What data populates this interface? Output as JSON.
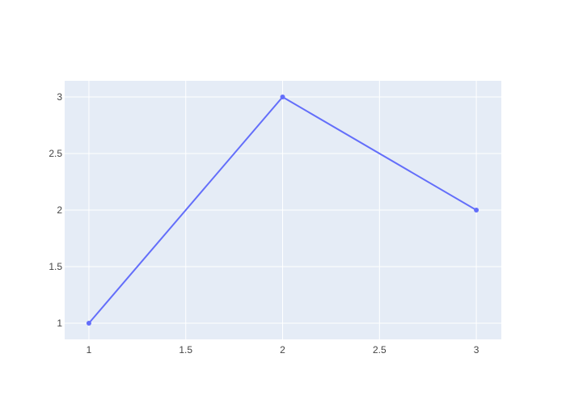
{
  "chart_data": {
    "type": "line",
    "mode": "lines+markers",
    "x": [
      1,
      2,
      3
    ],
    "y": [
      1,
      3,
      2
    ],
    "xlim": [
      0.875,
      3.129
    ],
    "ylim": [
      0.857,
      3.143
    ],
    "xticks": [
      "1",
      "1.5",
      "2",
      "2.5",
      "3"
    ],
    "xtick_values": [
      1,
      1.5,
      2,
      2.5,
      3
    ],
    "yticks": [
      "1",
      "1.5",
      "2",
      "2.5",
      "3"
    ],
    "ytick_values": [
      1,
      1.5,
      2,
      2.5,
      3
    ],
    "title": "",
    "xlabel": "",
    "ylabel": "",
    "grid": true,
    "colors": {
      "line": "#636efa",
      "plot_bg": "#e5ecf6",
      "grid": "#ffffff"
    }
  }
}
